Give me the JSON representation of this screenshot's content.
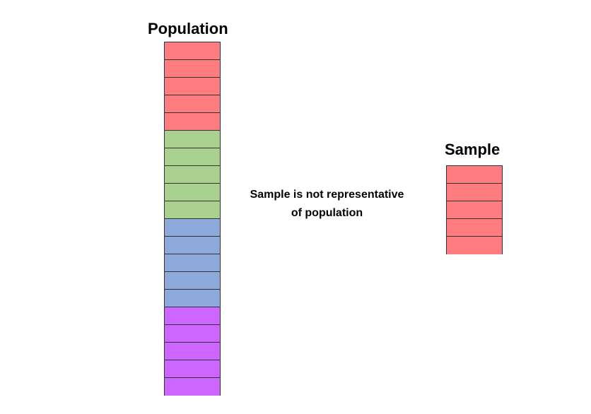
{
  "population": {
    "title": "Population",
    "cells": [
      "#ff7c80",
      "#ff7c80",
      "#ff7c80",
      "#ff7c80",
      "#ff7c80",
      "#a9d08e",
      "#a9d08e",
      "#a9d08e",
      "#a9d08e",
      "#a9d08e",
      "#8eaadb",
      "#8eaadb",
      "#8eaadb",
      "#8eaadb",
      "#8eaadb",
      "#cc66ff",
      "#cc66ff",
      "#cc66ff",
      "#cc66ff",
      "#cc66ff"
    ]
  },
  "sample": {
    "title": "Sample",
    "cells": [
      "#ff7c80",
      "#ff7c80",
      "#ff7c80",
      "#ff7c80",
      "#ff7c80"
    ]
  },
  "caption": {
    "line1": "Sample is not representative",
    "line2": "of population"
  }
}
